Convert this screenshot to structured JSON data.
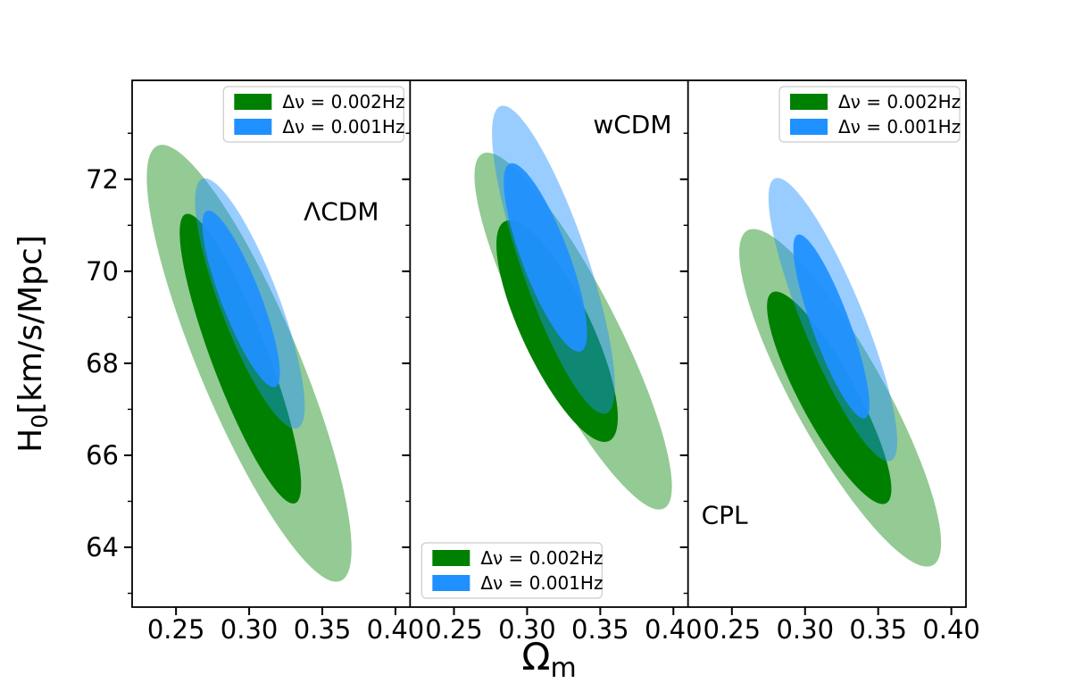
{
  "figure": {
    "background": "#ffffff",
    "axis_color": "#000000"
  },
  "chart_data": {
    "type": "contour-ellipses",
    "title": "",
    "xlabel": {
      "main": "Ω",
      "sub": "m"
    },
    "ylabel": {
      "main": "H",
      "sub": "0",
      "rest": "[km/s/Mpc]"
    },
    "xlim": [
      0.22,
      0.41
    ],
    "ylim": [
      62.7,
      74.15
    ],
    "x_ticks": [
      0.25,
      0.3,
      0.35,
      0.4
    ],
    "x_tick_labels": [
      "0.25",
      "0.30",
      "0.35",
      "0.40"
    ],
    "y_ticks": [
      64,
      66,
      68,
      70,
      72
    ],
    "y_tick_labels": [
      "64",
      "66",
      "68",
      "70",
      "72"
    ],
    "y_minor_ticks": [
      63,
      65,
      67,
      69,
      71,
      73
    ],
    "grid": false,
    "colors": {
      "green": "#008000",
      "blue": "#1e90ff"
    },
    "legend": {
      "entries": [
        {
          "label": "Δν = 0.002Hz",
          "color_key": "green"
        },
        {
          "label": "Δν = 0.001Hz",
          "color_key": "blue"
        }
      ]
    },
    "panels": [
      {
        "id": "lcdm",
        "label": "ΛCDM",
        "label_pos": {
          "x": 0.363,
          "y": 71.3
        },
        "legend_location": "upper right",
        "ellipses": [
          {
            "series": "Δν = 0.002Hz",
            "sigma": 2,
            "center": [
              0.3,
              68.0
            ],
            "semi_axis_x": 0.07,
            "semi_axis_y": 4.75,
            "correlation": -0.85,
            "color_key": "green",
            "opacity": 0.42
          },
          {
            "series": "Δν = 0.002Hz",
            "sigma": 1,
            "center": [
              0.294,
              68.1
            ],
            "semi_axis_x": 0.0415,
            "semi_axis_y": 3.15,
            "correlation": -0.87,
            "color_key": "green",
            "opacity": 1.0
          },
          {
            "series": "Δν = 0.001Hz",
            "sigma": 2,
            "center": [
              0.3005,
              69.3
            ],
            "semi_axis_x": 0.0375,
            "semi_axis_y": 2.72,
            "correlation": -0.82,
            "color_key": "blue",
            "opacity": 0.45
          },
          {
            "series": "Δν = 0.001Hz",
            "sigma": 1,
            "center": [
              0.2945,
              69.4
            ],
            "semi_axis_x": 0.0265,
            "semi_axis_y": 1.92,
            "correlation": -0.84,
            "color_key": "blue",
            "opacity": 0.93
          }
        ]
      },
      {
        "id": "wcdm",
        "label": "wCDM",
        "label_pos": {
          "x": 0.372,
          "y": 73.2
        },
        "legend_location": "lower left",
        "ellipses": [
          {
            "series": "Δν = 0.002Hz",
            "sigma": 2,
            "center": [
              0.3315,
              68.7
            ],
            "semi_axis_x": 0.0675,
            "semi_axis_y": 3.88,
            "correlation": -0.87,
            "color_key": "green",
            "opacity": 0.42
          },
          {
            "series": "Δν = 0.002Hz",
            "sigma": 1,
            "center": [
              0.3205,
              68.7
            ],
            "semi_axis_x": 0.0415,
            "semi_axis_y": 2.41,
            "correlation": -0.78,
            "color_key": "green",
            "opacity": 1.0
          },
          {
            "series": "Δν = 0.001Hz",
            "sigma": 2,
            "center": [
              0.318,
              70.25
            ],
            "semi_axis_x": 0.042,
            "semi_axis_y": 3.35,
            "correlation": -0.82,
            "color_key": "blue",
            "opacity": 0.45
          },
          {
            "series": "Δν = 0.001Hz",
            "sigma": 1,
            "center": [
              0.3125,
              70.3
            ],
            "semi_axis_x": 0.0285,
            "semi_axis_y": 2.05,
            "correlation": -0.8,
            "color_key": "blue",
            "opacity": 0.93
          }
        ]
      },
      {
        "id": "cpl",
        "label": "CPL",
        "label_pos": {
          "x": 0.245,
          "y": 64.7
        },
        "legend_location": "upper right",
        "ellipses": [
          {
            "series": "Δν = 0.002Hz",
            "sigma": 2,
            "center": [
              0.324,
              67.25
            ],
            "semi_axis_x": 0.069,
            "semi_axis_y": 3.67,
            "correlation": -0.86,
            "color_key": "green",
            "opacity": 0.42
          },
          {
            "series": "Δν = 0.002Hz",
            "sigma": 1,
            "center": [
              0.3165,
              67.25
            ],
            "semi_axis_x": 0.0425,
            "semi_axis_y": 2.31,
            "correlation": -0.86,
            "color_key": "green",
            "opacity": 1.0
          },
          {
            "series": "Δν = 0.001Hz",
            "sigma": 2,
            "center": [
              0.319,
              68.95
            ],
            "semi_axis_x": 0.044,
            "semi_axis_y": 3.08,
            "correlation": -0.86,
            "color_key": "blue",
            "opacity": 0.45
          },
          {
            "series": "Δν = 0.001Hz",
            "sigma": 1,
            "center": [
              0.318,
              68.8
            ],
            "semi_axis_x": 0.026,
            "semi_axis_y": 2.0,
            "correlation": -0.85,
            "color_key": "blue",
            "opacity": 0.93
          }
        ]
      }
    ]
  }
}
